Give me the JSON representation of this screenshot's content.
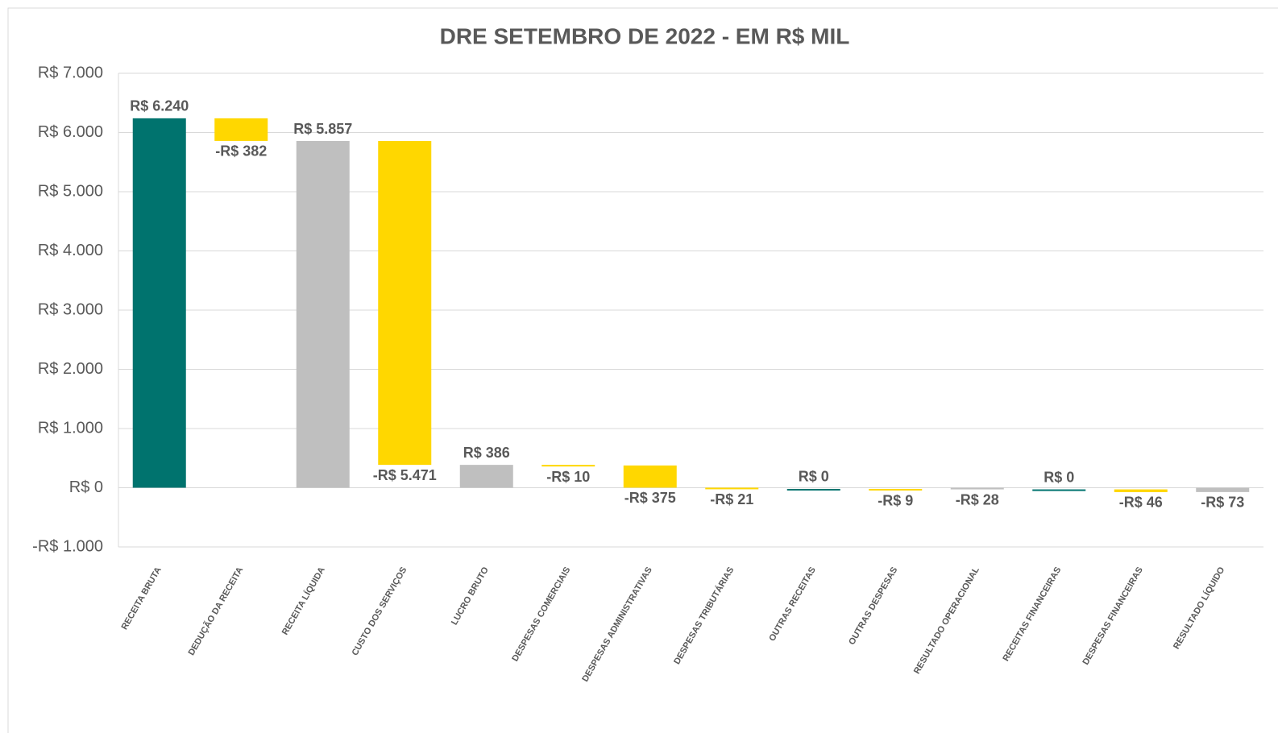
{
  "chart_data": {
    "type": "waterfall",
    "title": "DRE SETEMBRO DE 2022 - EM R$ MIL",
    "categories": [
      "RECEITA BRUTA",
      "DEDUÇÃO DA RECEITA",
      "RECEITA LÍQUIDA",
      "CUSTO DOS SERVIÇOS",
      "LUCRO BRUTO",
      "DESPESAS COMERCIAIS",
      "DESPESAS ADMINISTRATIVAS",
      "DESPESAS TRIBUTÁRIAS",
      "OUTRAS RECEITAS",
      "OUTRAS DESPESAS",
      "RESULTADO OPERACIONAL",
      "RECEITAS FINANCEIRAS",
      "DESPESAS FINANCEIRAS",
      "RESULTADO LÍQUIDO"
    ],
    "values": [
      6240,
      -382,
      5857,
      -5471,
      386,
      -10,
      -375,
      -21,
      0,
      -9,
      -28,
      0,
      -46,
      -73
    ],
    "value_labels": [
      "R$ 6.240",
      "-R$ 382",
      "R$ 5.857",
      "-R$ 5.471",
      "R$ 386",
      "-R$ 10",
      "-R$ 375",
      "-R$ 21",
      "R$ 0",
      "-R$ 9",
      "-R$ 28",
      "R$ 0",
      "-R$ 46",
      "-R$ 73"
    ],
    "kinds": [
      "delta",
      "delta",
      "total",
      "delta",
      "total",
      "delta",
      "delta",
      "delta",
      "delta",
      "delta",
      "total",
      "delta",
      "delta",
      "total"
    ],
    "colors": {
      "increase": "#00736e",
      "decrease": "#ffd700",
      "total": "#bfbfbf"
    },
    "ylim": [
      -1000,
      7000
    ],
    "yticks": [
      {
        "value": -1000,
        "label": "-R$ 1.000"
      },
      {
        "value": 0,
        "label": "R$ 0"
      },
      {
        "value": 1000,
        "label": "R$ 1.000"
      },
      {
        "value": 2000,
        "label": "R$ 2.000"
      },
      {
        "value": 3000,
        "label": "R$ 3.000"
      },
      {
        "value": 4000,
        "label": "R$ 4.000"
      },
      {
        "value": 5000,
        "label": "R$ 5.000"
      },
      {
        "value": 6000,
        "label": "R$ 6.000"
      },
      {
        "value": 7000,
        "label": "R$ 7.000"
      }
    ],
    "grid": true
  }
}
